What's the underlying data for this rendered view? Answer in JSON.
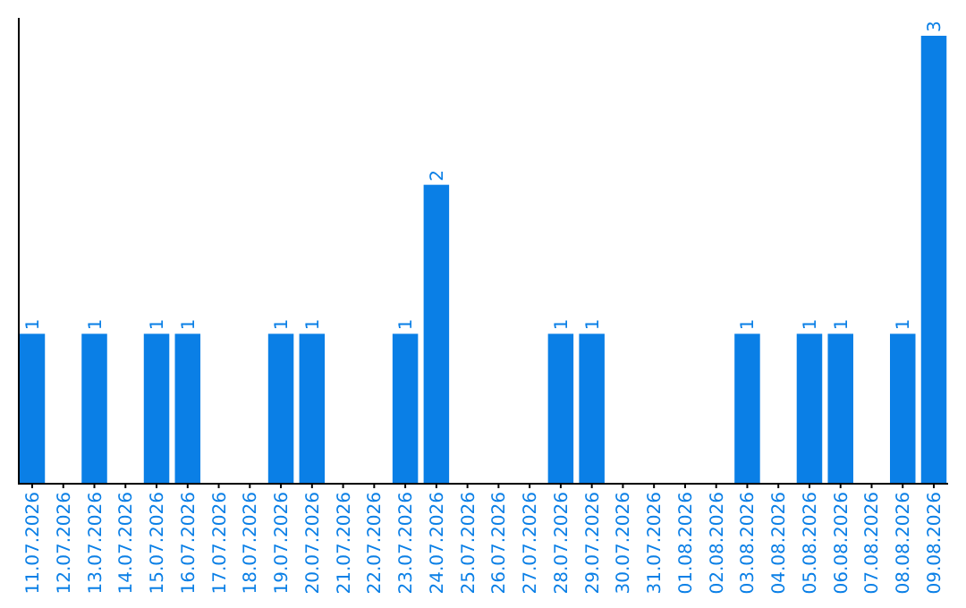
{
  "chart_data": {
    "type": "bar",
    "categories": [
      "11.07.2026",
      "12.07.2026",
      "13.07.2026",
      "14.07.2026",
      "15.07.2026",
      "16.07.2026",
      "17.07.2026",
      "18.07.2026",
      "19.07.2026",
      "20.07.2026",
      "21.07.2026",
      "22.07.2026",
      "23.07.2026",
      "24.07.2026",
      "25.07.2026",
      "26.07.2026",
      "27.07.2026",
      "28.07.2026",
      "29.07.2026",
      "30.07.2026",
      "31.07.2026",
      "01.08.2026",
      "02.08.2026",
      "03.08.2026",
      "04.08.2026",
      "05.08.2026",
      "06.08.2026",
      "07.08.2026",
      "08.08.2026",
      "09.08.2026"
    ],
    "values": [
      1,
      0,
      1,
      0,
      1,
      1,
      0,
      0,
      1,
      1,
      0,
      0,
      1,
      2,
      0,
      0,
      0,
      1,
      1,
      0,
      0,
      0,
      0,
      1,
      0,
      1,
      1,
      0,
      1,
      3
    ],
    "value_labels": [
      "1",
      null,
      "1",
      null,
      "1",
      "1",
      null,
      null,
      "1",
      "1",
      null,
      null,
      "1",
      "2",
      null,
      null,
      null,
      "1",
      "1",
      null,
      null,
      null,
      null,
      "1",
      null,
      "1",
      "1",
      null,
      "1",
      "3"
    ],
    "color": "#0a7fe6",
    "tick_labels": "x"
  }
}
